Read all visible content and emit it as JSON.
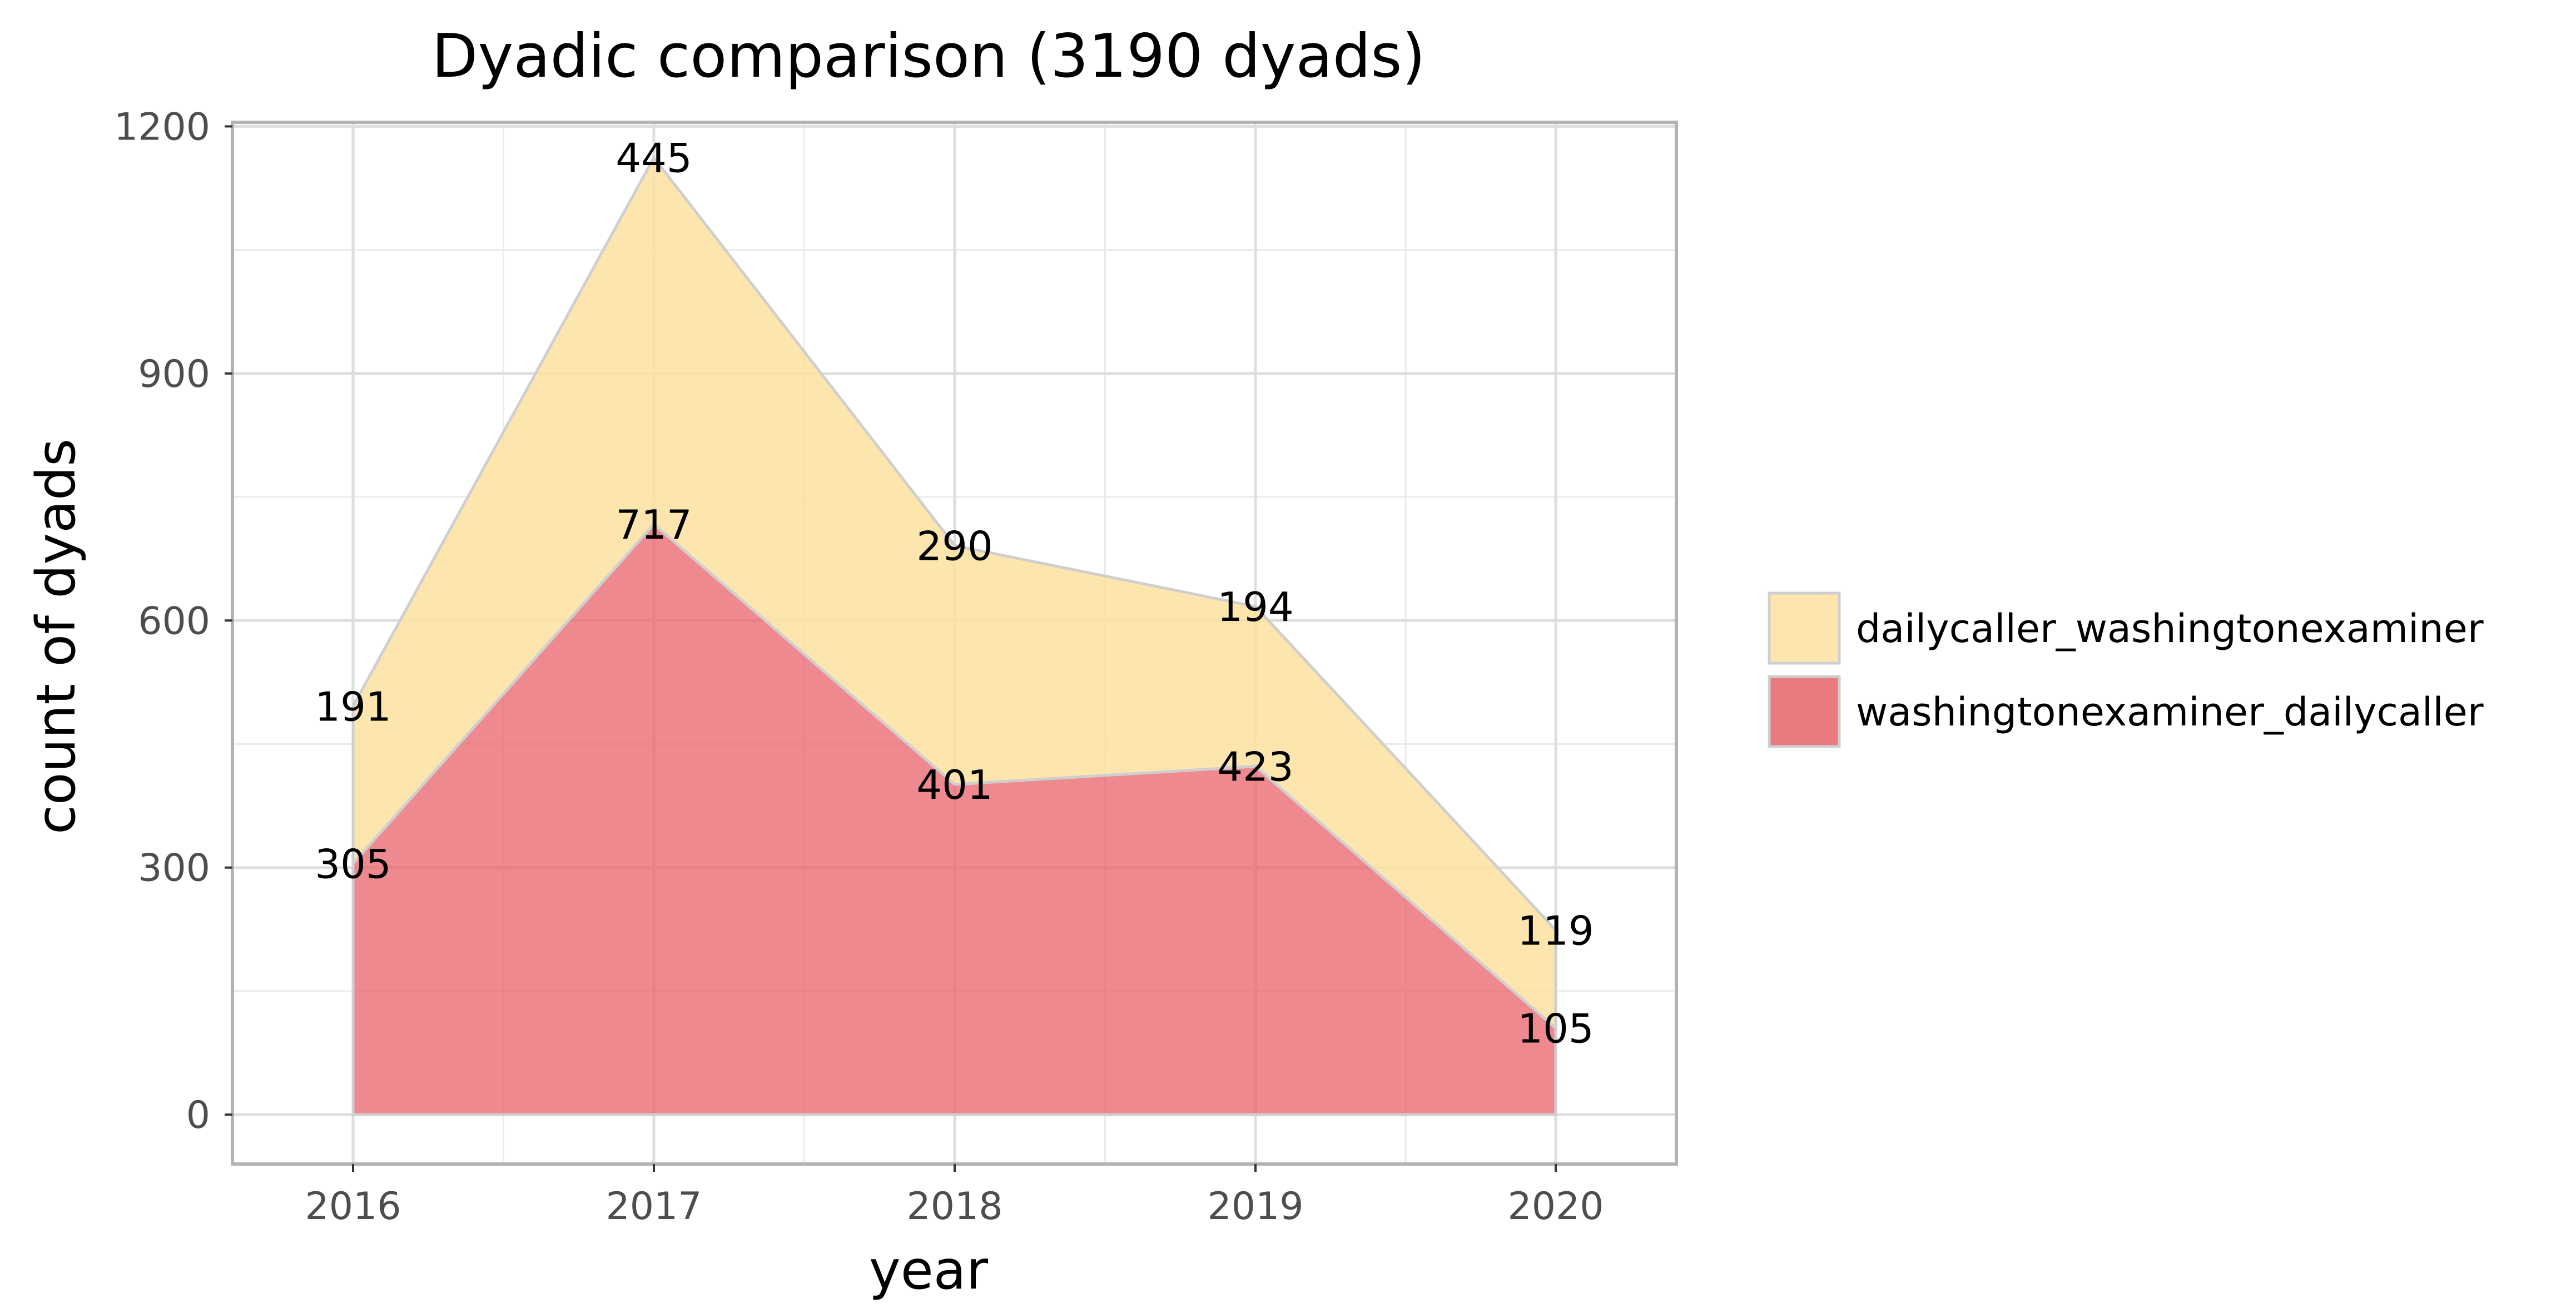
{
  "chart_data": {
    "type": "area",
    "stacked": true,
    "title": "Dyadic comparison (3190 dyads)",
    "xlabel": "year",
    "ylabel": "count of dyads",
    "x": [
      "2016",
      "2017",
      "2018",
      "2019",
      "2020"
    ],
    "yticks": [
      "0",
      "300",
      "600",
      "900",
      "1200"
    ],
    "ylim": [
      -60,
      1205
    ],
    "grid": true,
    "legend_position": "right",
    "series": [
      {
        "name": "washingtonexaminer_dailycaller",
        "values": [
          305,
          717,
          401,
          423,
          105
        ],
        "color": "#e8636a"
      },
      {
        "name": "dailycaller_washingtonexaminer",
        "values": [
          191,
          445,
          290,
          194,
          119
        ],
        "color": "#fde0a0"
      }
    ],
    "legend_order": [
      "dailycaller_washingtonexaminer",
      "washingtonexaminer_dailycaller"
    ]
  }
}
